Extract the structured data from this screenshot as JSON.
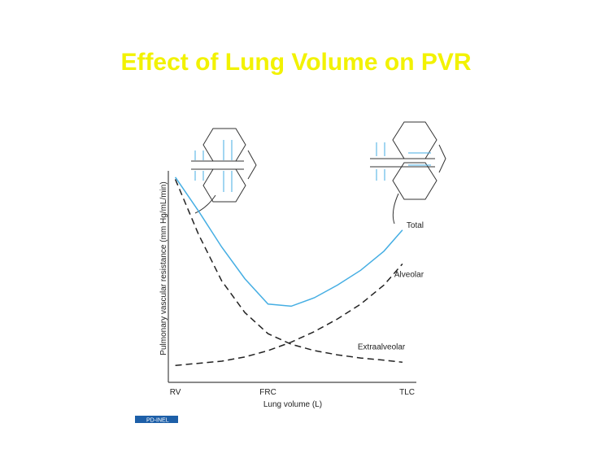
{
  "slide_title": "Effect of Lung Volume on PVR",
  "logo": "PD-INEL",
  "chart_data": {
    "type": "line",
    "xlabel": "Lung volume (L)",
    "ylabel": "Pulmonary vascular resistance (mm Hg/mL/min)",
    "x": [
      0,
      1,
      2,
      3,
      4,
      5,
      6,
      7,
      8,
      9,
      9.8
    ],
    "xlim": [
      -0.3,
      10.4
    ],
    "xticks": [
      {
        "value": 0,
        "label": "RV"
      },
      {
        "value": 4,
        "label": "FRC"
      },
      {
        "value": 10,
        "label": "TLC"
      }
    ],
    "ylim": [
      0,
      10
    ],
    "series": [
      {
        "name": "Total",
        "color": "#45aee3",
        "style": "solid",
        "values": [
          9.7,
          8.1,
          6.4,
          4.9,
          3.7,
          3.6,
          4.0,
          4.6,
          5.3,
          6.2,
          7.2
        ]
      },
      {
        "name": "Alveolar",
        "color": "#222222",
        "style": "dashed",
        "values": [
          0.8,
          0.9,
          1.0,
          1.2,
          1.5,
          1.9,
          2.4,
          3.0,
          3.7,
          4.6,
          5.6
        ]
      },
      {
        "name": "Extraalveolar",
        "color": "#222222",
        "style": "dashed",
        "values": [
          9.6,
          7.0,
          4.8,
          3.3,
          2.3,
          1.8,
          1.5,
          1.3,
          1.15,
          1.05,
          0.95
        ]
      }
    ]
  }
}
